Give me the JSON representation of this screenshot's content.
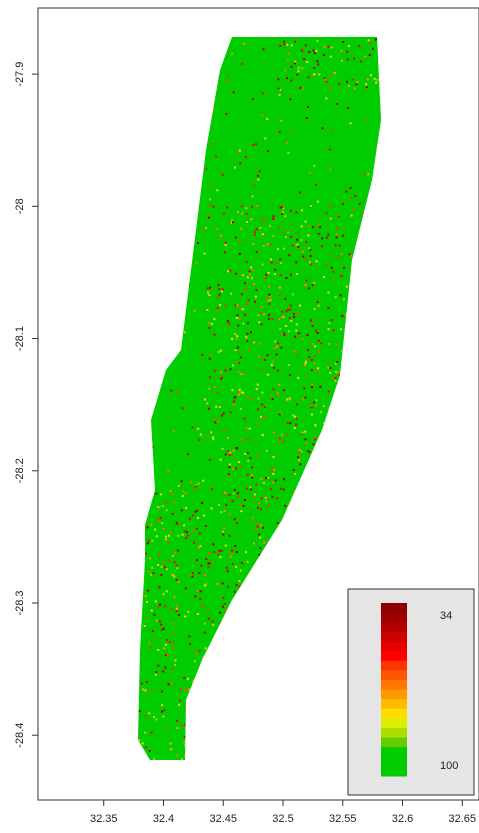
{
  "chart_data": {
    "type": "raster",
    "xlim": [
      32.295,
      32.664
    ],
    "xticks": [
      32.35,
      32.4,
      32.45,
      32.5,
      32.55,
      32.6,
      32.65
    ],
    "ylim": [
      -28.449,
      -27.85
    ],
    "yticks": [
      -27.9,
      -28.0,
      -28.1,
      -28.2,
      -28.3,
      -28.4
    ],
    "map_color": "#00cc00",
    "colorbar": {
      "ticks": [
        34,
        100
      ],
      "colors": [
        "#8b0000",
        "#9e0000",
        "#b40000",
        "#cc0000",
        "#e60000",
        "#ff0000",
        "#ff3300",
        "#ff5500",
        "#ff7700",
        "#ff9900",
        "#ffbb00",
        "#ffdd00",
        "#ddee00",
        "#aadd00",
        "#66cc00",
        "#00cc00",
        "#00cc00",
        "#00cc00"
      ]
    }
  }
}
